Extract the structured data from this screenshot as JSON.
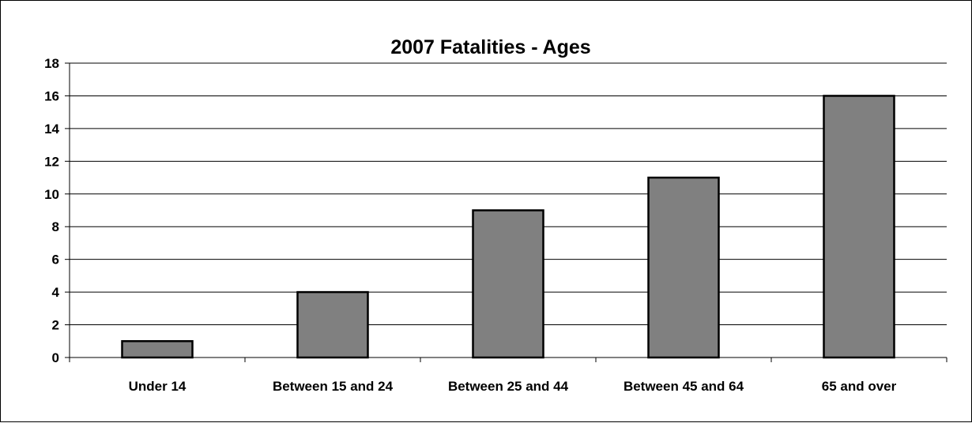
{
  "chart_data": {
    "type": "bar",
    "title": "2007 Fatalities - Ages",
    "xlabel": "",
    "ylabel": "",
    "categories": [
      "Under 14",
      "Between 15 and 24",
      "Between 25 and 44",
      "Between 45 and 64",
      "65 and over"
    ],
    "series": [
      {
        "values": [
          1,
          4,
          9,
          11,
          16
        ]
      }
    ],
    "ylim": [
      0,
      18
    ],
    "yticks": [
      0,
      2,
      4,
      6,
      8,
      10,
      12,
      14,
      16,
      18
    ],
    "grid": "horizontal",
    "legend": "none",
    "colors": {
      "bar_fill": "#808080",
      "bar_stroke": "#000000",
      "grid": "#000000",
      "axis": "#000000",
      "background": "#ffffff"
    }
  }
}
